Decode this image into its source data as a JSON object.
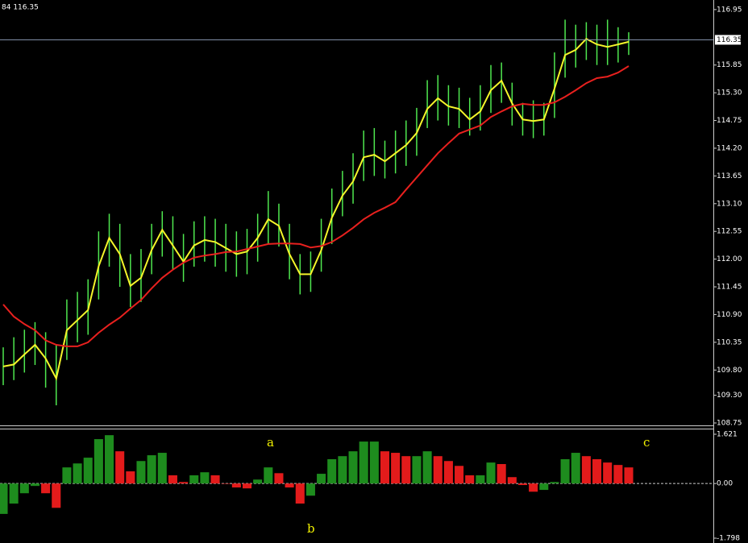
{
  "header_text": "84 116.35",
  "chart_data": [
    {
      "type": "ohlc",
      "bar_color": "#4fe84f",
      "ylim": [
        108.67,
        117.14
      ],
      "yticks": [
        116.95,
        115.85,
        {
          "value": 115.3,
          "label": "115.30"
        },
        114.75,
        {
          "value": 114.2,
          "label": "114.20"
        },
        113.65,
        {
          "value": 113.1,
          "label": "113.10"
        },
        112.55,
        {
          "value": 112,
          "label": "112.00"
        },
        111.45,
        {
          "value": 110.9,
          "label": "110.90"
        },
        110.35,
        {
          "value": 109.8,
          "label": "109.80"
        },
        {
          "value": 109.3,
          "label": "109.30"
        },
        108.75
      ],
      "last_price": 116.35,
      "high": [
        110.25,
        110.45,
        110.6,
        110.75,
        110.55,
        110.3,
        111.2,
        111.35,
        111.6,
        112.55,
        112.9,
        112.7,
        112.1,
        112.2,
        112.7,
        112.95,
        112.85,
        112.5,
        112.75,
        112.85,
        112.8,
        112.7,
        112.55,
        112.6,
        112.9,
        113.35,
        113.1,
        112.7,
        112.1,
        112.15,
        112.8,
        113.4,
        113.75,
        114.1,
        114.55,
        114.6,
        114.35,
        114.55,
        114.75,
        115,
        115.55,
        115.65,
        115.45,
        115.4,
        115.2,
        115.45,
        115.85,
        115.9,
        115.5,
        115.1,
        115.15,
        115.1,
        116.1,
        116.75,
        116.65,
        116.7,
        116.65,
        116.75,
        116.6,
        116.5
      ],
      "low": [
        109.5,
        109.6,
        109.75,
        109.9,
        109.45,
        109.1,
        110,
        110.35,
        110.5,
        111.2,
        111.85,
        111.45,
        111.05,
        111.15,
        111.7,
        112.05,
        111.8,
        111.55,
        111.85,
        111.95,
        111.85,
        111.75,
        111.65,
        111.7,
        111.95,
        112.3,
        112.25,
        111.6,
        111.3,
        111.35,
        111.75,
        112.3,
        112.85,
        113.1,
        113.55,
        113.65,
        113.6,
        113.7,
        113.85,
        114.05,
        114.6,
        114.75,
        114.65,
        114.6,
        114.45,
        114.55,
        114.9,
        115.1,
        114.65,
        114.45,
        114.4,
        114.45,
        114.8,
        115.6,
        115.8,
        115.95,
        115.85,
        115.85,
        115.9,
        116.05
      ],
      "lines": [
        {
          "color": "#f5f52a",
          "values": [
            109.87,
            109.91,
            110.11,
            110.3,
            110.03,
            109.63,
            110.59,
            110.79,
            110.99,
            111.86,
            112.42,
            112.1,
            111.47,
            111.63,
            112.18,
            112.58,
            112.27,
            111.95,
            112.27,
            112.38,
            112.34,
            112.22,
            112.1,
            112.15,
            112.42,
            112.79,
            112.66,
            112.1,
            111.7,
            111.7,
            112.18,
            112.82,
            113.26,
            113.54,
            114.02,
            114.07,
            113.94,
            114.1,
            114.26,
            114.5,
            114.98,
            115.19,
            115.03,
            114.98,
            114.77,
            114.93,
            115.35,
            115.54,
            115.09,
            114.77,
            114.74,
            114.77,
            115.38,
            116.05,
            116.15,
            116.37,
            116.26,
            116.21,
            116.26,
            116.31
          ]
        },
        {
          "color": "#e8201e",
          "values": [
            111.1,
            110.86,
            110.71,
            110.59,
            110.39,
            110.3,
            110.27,
            110.27,
            110.35,
            110.54,
            110.7,
            110.84,
            111.02,
            111.19,
            111.42,
            111.63,
            111.79,
            111.93,
            112.03,
            112.07,
            112.1,
            112.14,
            112.15,
            112.2,
            112.25,
            112.3,
            112.31,
            112.31,
            112.3,
            112.23,
            112.26,
            112.34,
            112.47,
            112.62,
            112.79,
            112.92,
            113.02,
            113.13,
            113.38,
            113.62,
            113.86,
            114.1,
            114.3,
            114.49,
            114.57,
            114.65,
            114.82,
            114.93,
            115.03,
            115.08,
            115.06,
            115.06,
            115.11,
            115.22,
            115.35,
            115.49,
            115.59,
            115.62,
            115.7,
            115.83
          ]
        }
      ]
    },
    {
      "type": "histogram",
      "up_color": "#1e8c1e",
      "down_color": "#e31b1b",
      "ylim": [
        -1.957,
        1.78
      ],
      "yticks": [
        1.621,
        {
          "value": 0,
          "label": "0.00"
        },
        -1.798
      ],
      "values": [
        -1,
        -0.66,
        -0.32,
        -0.08,
        -0.32,
        -0.8,
        0.53,
        0.66,
        0.85,
        1.46,
        1.59,
        1.06,
        0.4,
        0.74,
        0.93,
        1.01,
        0.27,
        0.05,
        0.27,
        0.37,
        0.27,
        0,
        -0.13,
        -0.16,
        0.13,
        0.53,
        0.34,
        -0.13,
        -0.66,
        -0.4,
        0.32,
        0.8,
        0.9,
        1.06,
        1.38,
        1.38,
        1.06,
        1.01,
        0.9,
        0.9,
        1.06,
        0.9,
        0.74,
        0.58,
        0.27,
        0.27,
        0.69,
        0.64,
        0.21,
        -0.05,
        -0.27,
        -0.21,
        0.05,
        0.8,
        1.01,
        0.9,
        0.8,
        0.69,
        0.61,
        0.53
      ],
      "annotations": [
        "a",
        "b",
        "c"
      ]
    }
  ]
}
